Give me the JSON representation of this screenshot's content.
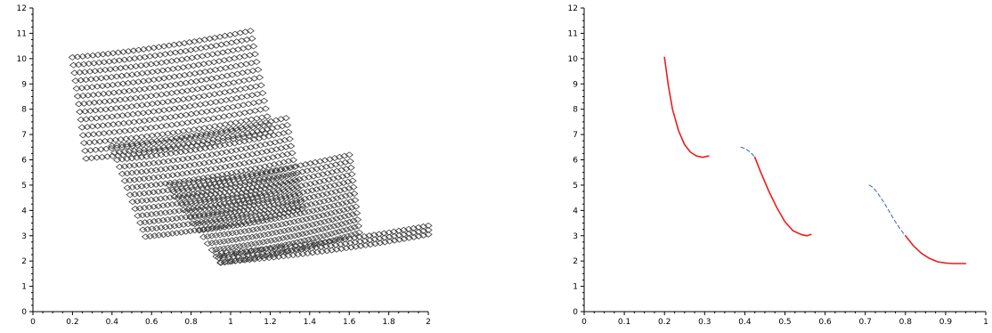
{
  "chart_data": [
    {
      "type": "scatter",
      "marker": "diamond",
      "color": "#3c3c3c",
      "xlim": [
        0,
        2
      ],
      "ylim": [
        0,
        12
      ],
      "x_ticks": [
        "0",
        "0.2",
        "0.4",
        "0.6",
        "0.8",
        "1",
        "1.2",
        "1.4",
        "1.6",
        "1.8",
        "2"
      ],
      "y_ticks": [
        "0",
        "1",
        "2",
        "3",
        "4",
        "5",
        "6",
        "7",
        "8",
        "9",
        "10",
        "11",
        "12"
      ],
      "families": [
        {
          "y0_max": 10.05,
          "y0_min": 6.1,
          "x_start_max": 0.2,
          "x_start_min": 0.27,
          "x_end": 1.1,
          "rise": 1.05,
          "diag_shift": 0.1,
          "rows": 14,
          "cols": 36
        },
        {
          "y0_max": 6.55,
          "y0_min": 3.0,
          "x_start_max": 0.4,
          "x_start_min": 0.57,
          "x_end": 1.28,
          "rise": 1.1,
          "diag_shift": 0.08,
          "rows": 14,
          "cols": 36
        },
        {
          "y0_max": 5.0,
          "y0_min": 1.95,
          "x_start_max": 0.69,
          "x_start_min": 0.95,
          "x_end": 1.6,
          "rise": 1.2,
          "diag_shift": 0.05,
          "rows": 13,
          "cols": 38
        },
        {
          "y0_max": 2.3,
          "y0_min": 1.95,
          "x_start_max": 0.93,
          "x_start_min": 0.95,
          "x_end": 2.0,
          "rise": 1.1,
          "diag_shift": 0.0,
          "rows": 3,
          "cols": 44
        }
      ]
    },
    {
      "type": "line",
      "xlim": [
        0,
        1
      ],
      "ylim": [
        0,
        12
      ],
      "x_ticks": [
        "0",
        "0.1",
        "0.2",
        "0.3",
        "0.4",
        "0.5",
        "0.6",
        "0.7",
        "0.8",
        "0.9",
        "1"
      ],
      "y_ticks": [
        "0",
        "1",
        "2",
        "3",
        "4",
        "5",
        "6",
        "7",
        "8",
        "9",
        "10",
        "11",
        "12"
      ],
      "series": [
        {
          "color": "#ee1c1c",
          "style": "solid",
          "x": [
            0.2,
            0.21,
            0.22,
            0.235,
            0.25,
            0.265,
            0.28,
            0.295,
            0.31
          ],
          "y": [
            10.05,
            8.9,
            8.0,
            7.15,
            6.6,
            6.3,
            6.15,
            6.1,
            6.15
          ]
        },
        {
          "color": "#3a5fbf",
          "style": "dashed",
          "x": [
            0.39,
            0.4,
            0.41,
            0.42,
            0.425
          ],
          "y": [
            6.5,
            6.45,
            6.35,
            6.2,
            6.1
          ]
        },
        {
          "color": "#ee1c1c",
          "style": "solid",
          "x": [
            0.425,
            0.44,
            0.46,
            0.48,
            0.5,
            0.52,
            0.54,
            0.555,
            0.565
          ],
          "y": [
            6.1,
            5.5,
            4.75,
            4.1,
            3.55,
            3.2,
            3.05,
            3.0,
            3.05
          ]
        },
        {
          "color": "#3a5fbf",
          "style": "dashed",
          "x": [
            0.71,
            0.72,
            0.73,
            0.745,
            0.76,
            0.775,
            0.79,
            0.8
          ],
          "y": [
            5.0,
            4.9,
            4.7,
            4.35,
            3.95,
            3.55,
            3.2,
            3.0
          ]
        },
        {
          "color": "#ee1c1c",
          "style": "solid",
          "x": [
            0.8,
            0.82,
            0.84,
            0.86,
            0.88,
            0.9,
            0.92,
            0.94,
            0.95
          ],
          "y": [
            3.0,
            2.6,
            2.3,
            2.1,
            1.97,
            1.92,
            1.9,
            1.9,
            1.9
          ]
        }
      ]
    }
  ]
}
